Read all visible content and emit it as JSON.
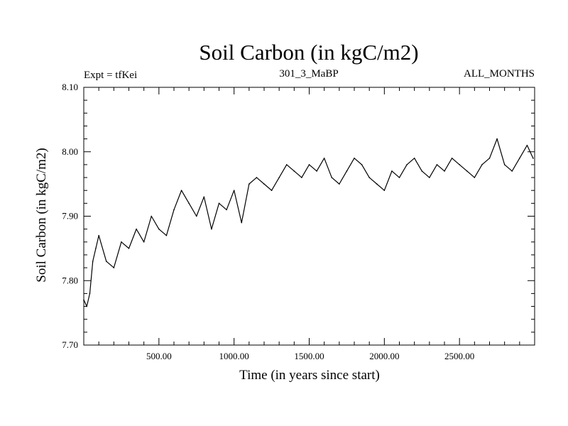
{
  "chart_data": {
    "type": "line",
    "title": "Soil Carbon (in kgC/m2)",
    "experiment_label": "Expt = tfKei",
    "run_label": "301_3_MaBP",
    "period_label": "ALL_MONTHS",
    "xlabel": "Time (in years since start)",
    "ylabel": "Soil Carbon (in kgC/m2)",
    "xlim": [
      0,
      3000
    ],
    "ylim": [
      7.7,
      8.1
    ],
    "grid": false,
    "x_ticks": [
      {
        "value": 500,
        "label": "500.00"
      },
      {
        "value": 1000,
        "label": "1000.00"
      },
      {
        "value": 1500,
        "label": "1500.00"
      },
      {
        "value": 2000,
        "label": "2000.00"
      },
      {
        "value": 2500,
        "label": "2500.00"
      }
    ],
    "y_ticks": [
      {
        "value": 7.7,
        "label": "7.70"
      },
      {
        "value": 7.8,
        "label": "7.80"
      },
      {
        "value": 7.9,
        "label": "7.90"
      },
      {
        "value": 8.0,
        "label": "8.00"
      },
      {
        "value": 8.1,
        "label": "8.10"
      }
    ],
    "series": [
      {
        "color": "#000000",
        "x": [
          0,
          20,
          40,
          60,
          80,
          100,
          150,
          200,
          250,
          300,
          350,
          400,
          450,
          500,
          550,
          600,
          650,
          700,
          750,
          800,
          850,
          900,
          950,
          1000,
          1050,
          1100,
          1150,
          1200,
          1250,
          1300,
          1350,
          1400,
          1450,
          1500,
          1550,
          1600,
          1650,
          1700,
          1750,
          1800,
          1850,
          1900,
          1950,
          2000,
          2050,
          2100,
          2150,
          2200,
          2250,
          2300,
          2350,
          2400,
          2450,
          2500,
          2550,
          2600,
          2650,
          2700,
          2750,
          2800,
          2850,
          2900,
          2950,
          2990
        ],
        "values": [
          7.77,
          7.76,
          7.78,
          7.83,
          7.85,
          7.87,
          7.83,
          7.82,
          7.86,
          7.85,
          7.88,
          7.86,
          7.9,
          7.88,
          7.87,
          7.91,
          7.94,
          7.92,
          7.9,
          7.93,
          7.88,
          7.92,
          7.91,
          7.94,
          7.89,
          7.95,
          7.96,
          7.95,
          7.94,
          7.96,
          7.98,
          7.97,
          7.96,
          7.98,
          7.97,
          7.99,
          7.96,
          7.95,
          7.97,
          7.99,
          7.98,
          7.96,
          7.95,
          7.94,
          7.97,
          7.96,
          7.98,
          7.99,
          7.97,
          7.96,
          7.98,
          7.97,
          7.99,
          7.98,
          7.97,
          7.96,
          7.98,
          7.99,
          8.02,
          7.98,
          7.97,
          7.99,
          8.01,
          7.99
        ]
      }
    ]
  }
}
